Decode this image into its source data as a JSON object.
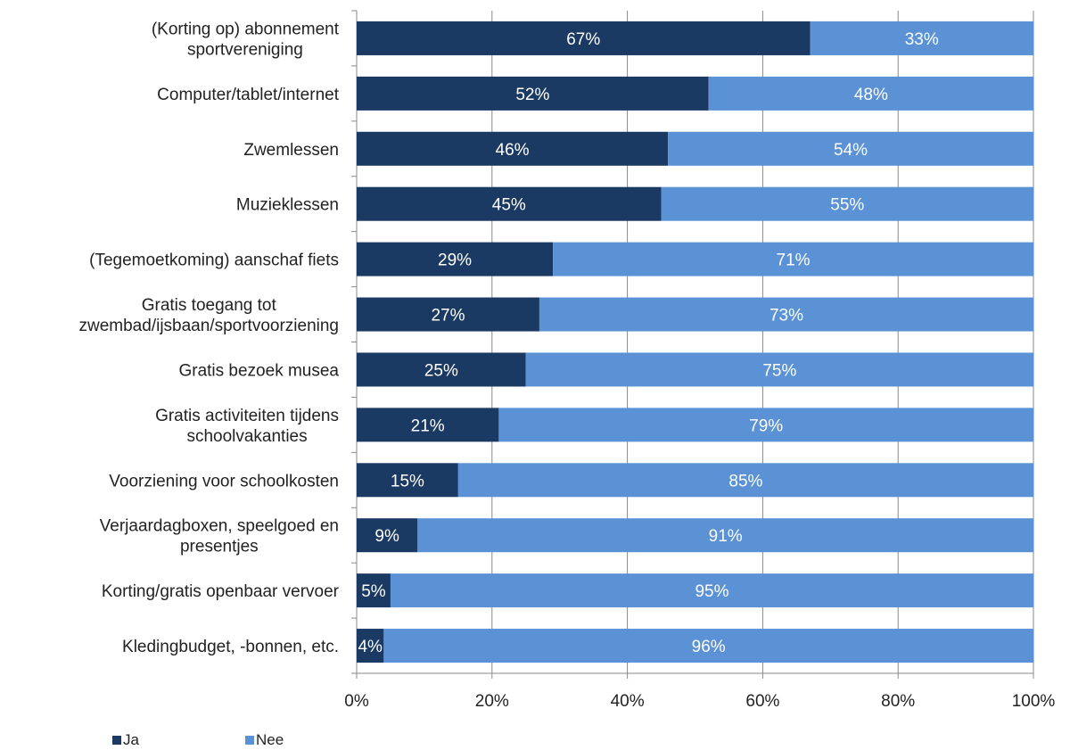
{
  "chart_data": {
    "type": "bar",
    "orientation": "horizontal",
    "stacked": true,
    "title": "",
    "xlabel": "",
    "ylabel": "",
    "xlim": [
      0,
      100
    ],
    "x_ticks": [
      "0%",
      "20%",
      "40%",
      "60%",
      "80%",
      "100%"
    ],
    "grid": true,
    "legend_position": "bottom-left",
    "categories": [
      [
        "(Korting op) abonnement",
        "sportvereniging"
      ],
      [
        "Computer/tablet/internet"
      ],
      [
        "Zwemlessen"
      ],
      [
        "Muzieklessen"
      ],
      [
        "(Tegemoetkoming) aanschaf fiets"
      ],
      [
        "Gratis toegang tot",
        "zwembad/ijsbaan/sportvoorziening"
      ],
      [
        "Gratis bezoek musea"
      ],
      [
        "Gratis activiteiten tijdens",
        "schoolvakanties"
      ],
      [
        "Voorziening voor schoolkosten"
      ],
      [
        "Verjaardagboxen, speelgoed en",
        "presentjes"
      ],
      [
        "Korting/gratis openbaar vervoer"
      ],
      [
        "Kledingbudget, -bonnen, etc."
      ]
    ],
    "series": [
      {
        "name": "Ja",
        "color": "#1b3a63",
        "values": [
          67,
          52,
          46,
          45,
          29,
          27,
          25,
          21,
          15,
          9,
          5,
          4
        ],
        "labels": [
          "67%",
          "52%",
          "46%",
          "45%",
          "29%",
          "27%",
          "25%",
          "21%",
          "15%",
          "9%",
          "5%",
          "4%"
        ]
      },
      {
        "name": "Nee",
        "color": "#5b92d6",
        "values": [
          33,
          48,
          54,
          55,
          71,
          73,
          75,
          79,
          85,
          91,
          95,
          96
        ],
        "labels": [
          "33%",
          "48%",
          "54%",
          "55%",
          "71%",
          "73%",
          "75%",
          "79%",
          "85%",
          "91%",
          "95%",
          "96%"
        ]
      }
    ]
  }
}
